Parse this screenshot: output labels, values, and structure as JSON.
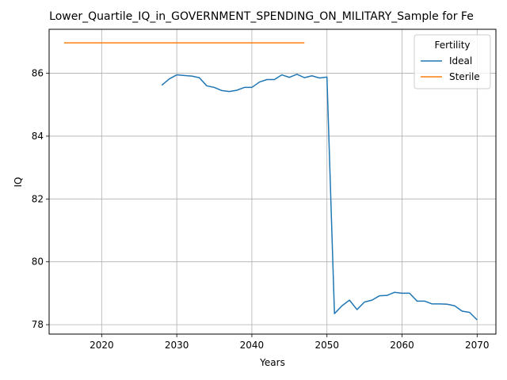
{
  "chart_data": {
    "type": "line",
    "title": "Lower_Quartile_IQ_in_GOVERNMENT_SPENDING_ON_MILITARY_Sample for Fe",
    "xlabel": "Years",
    "ylabel": "IQ",
    "xlim": [
      2013,
      2072.5
    ],
    "ylim": [
      77.7,
      87.4
    ],
    "xticks": [
      2020,
      2030,
      2040,
      2050,
      2060,
      2070
    ],
    "yticks": [
      78,
      80,
      82,
      84,
      86
    ],
    "grid": true,
    "legend": {
      "title": "Fertility",
      "placement": "top-right"
    },
    "series": [
      {
        "name": "Ideal",
        "color": "#1f77b4",
        "x": [
          2028,
          2029,
          2030,
          2031,
          2032,
          2033,
          2034,
          2035,
          2036,
          2037,
          2038,
          2039,
          2040,
          2041,
          2042,
          2043,
          2044,
          2045,
          2046,
          2047,
          2048,
          2049,
          2050,
          2051,
          2052,
          2053,
          2054,
          2055,
          2056,
          2057,
          2058,
          2059,
          2060,
          2061,
          2062,
          2063,
          2064,
          2065,
          2066,
          2067,
          2068,
          2069,
          2070
        ],
        "y": [
          85.62,
          85.82,
          85.95,
          85.93,
          85.91,
          85.86,
          85.6,
          85.55,
          85.45,
          85.42,
          85.46,
          85.55,
          85.55,
          85.72,
          85.8,
          85.8,
          85.95,
          85.87,
          85.97,
          85.86,
          85.92,
          85.85,
          85.88,
          78.35,
          78.6,
          78.78,
          78.48,
          78.72,
          78.78,
          78.92,
          78.93,
          79.03,
          79.0,
          79.0,
          78.75,
          78.75,
          78.66,
          78.66,
          78.65,
          78.6,
          78.43,
          78.39,
          78.15
        ]
      },
      {
        "name": "Sterile",
        "color": "#ff7f0e",
        "x": [
          2015,
          2047
        ],
        "y": [
          86.97,
          86.97
        ]
      }
    ]
  }
}
